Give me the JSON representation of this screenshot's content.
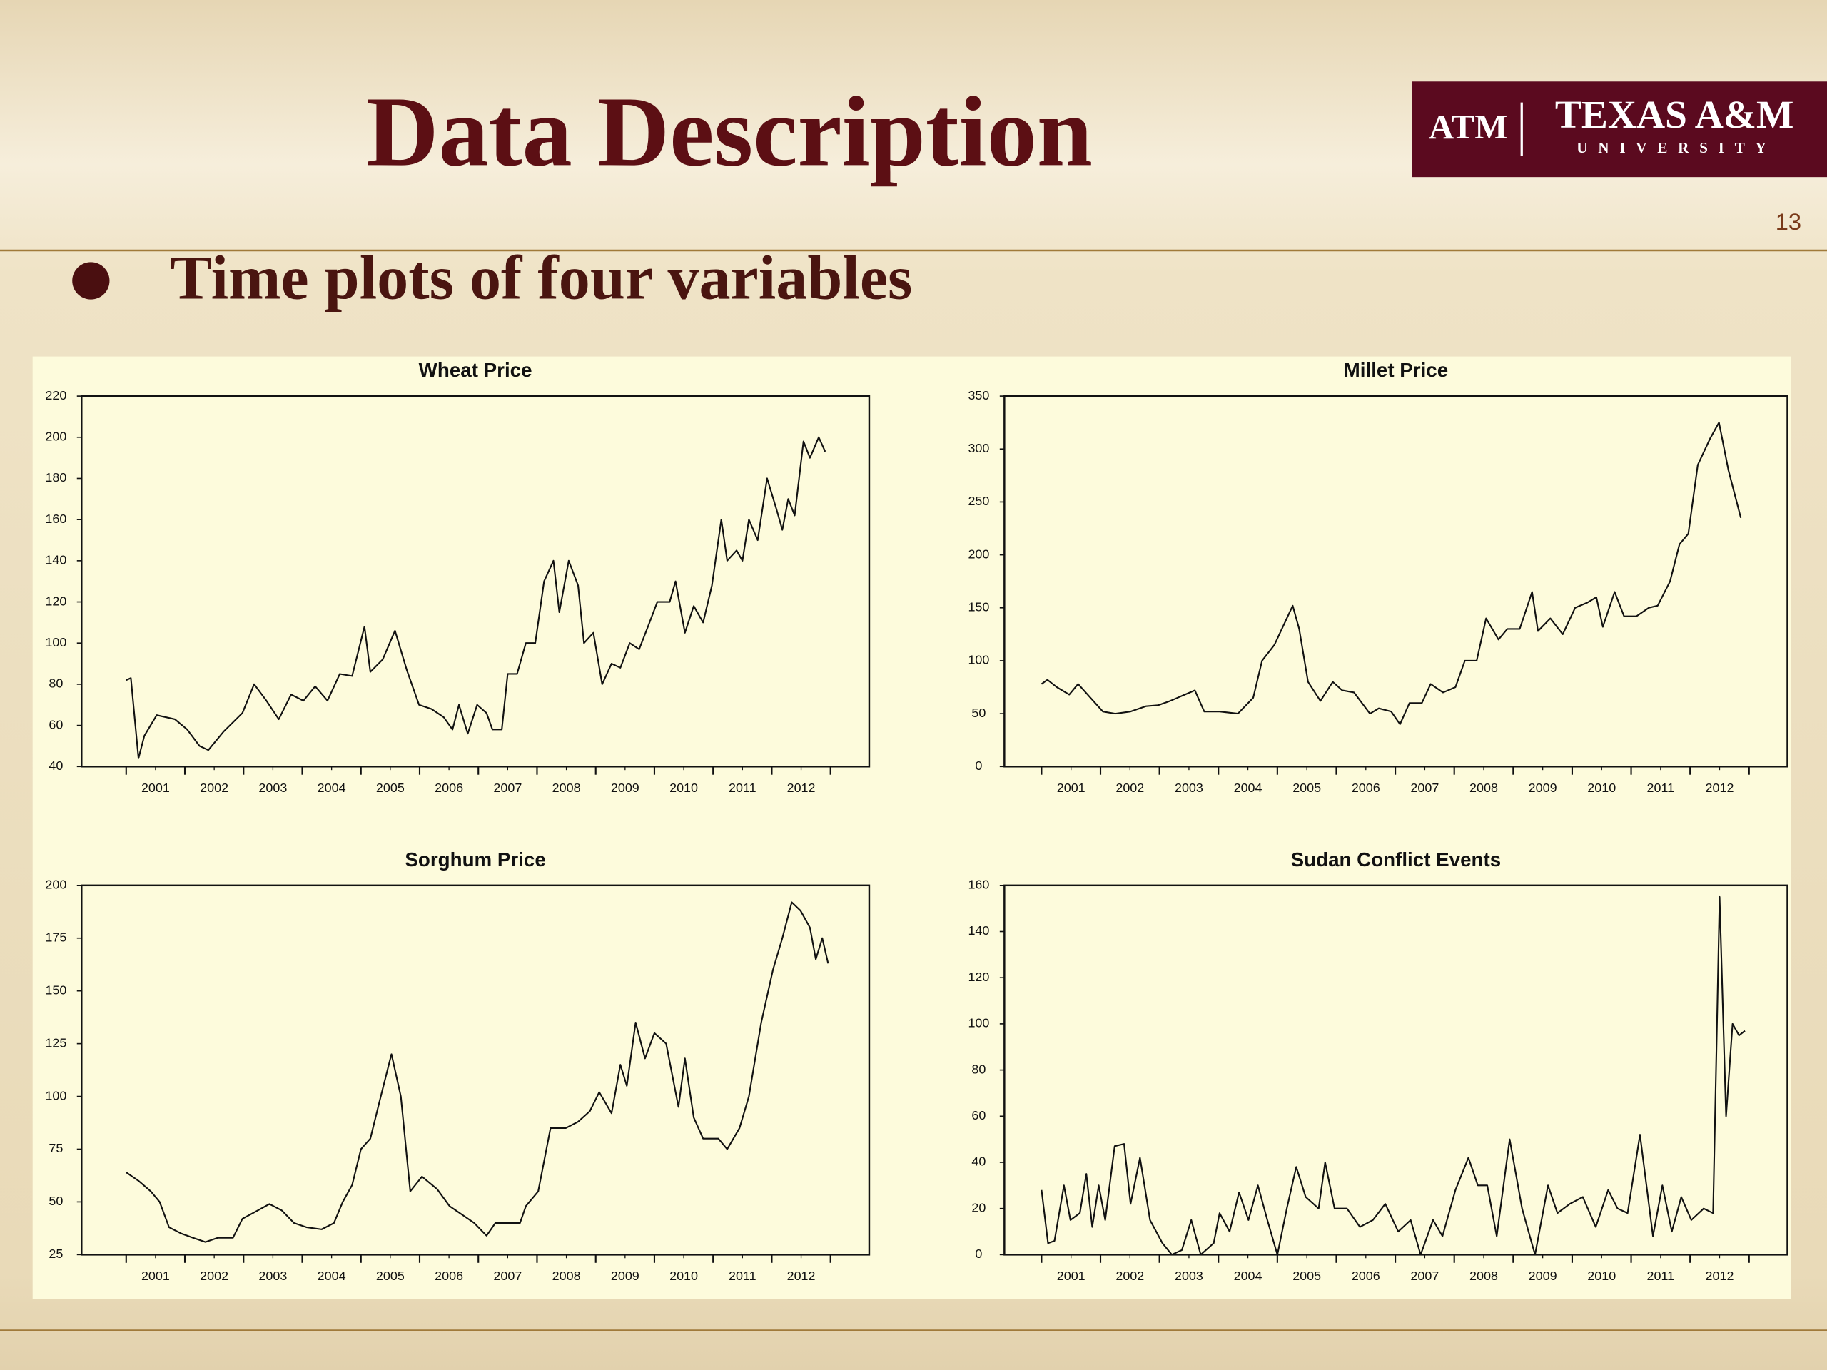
{
  "header": {
    "title": "Data Description",
    "page_number": "13",
    "logo": {
      "mark": "ATM",
      "name": "TEXAS A&M",
      "subtitle": "UNIVERSITY"
    }
  },
  "bullets": [
    "Time plots of four variables"
  ],
  "chart_data": [
    {
      "type": "line",
      "title": "Wheat Price",
      "color": "#111111",
      "x": [
        2001.0,
        2001.08,
        2001.21,
        2001.31,
        2001.52,
        2001.83,
        2002.04,
        2002.25,
        2002.4,
        2002.66,
        2002.98,
        2003.18,
        2003.39,
        2003.6,
        2003.81,
        2004.02,
        2004.22,
        2004.43,
        2004.64,
        2004.85,
        2005.06,
        2005.16,
        2005.37,
        2005.58,
        2005.78,
        2005.99,
        2006.2,
        2006.41,
        2006.56,
        2006.67,
        2006.82,
        2006.98,
        2007.14,
        2007.24,
        2007.4,
        2007.5,
        2007.66,
        2007.81,
        2007.97,
        2008.12,
        2008.28,
        2008.38,
        2008.54,
        2008.7,
        2008.8,
        2008.96,
        2009.11,
        2009.27,
        2009.42,
        2009.58,
        2009.74,
        2009.89,
        2010.05,
        2010.26,
        2010.36,
        2010.52,
        2010.67,
        2010.83,
        2010.98,
        2011.14,
        2011.24,
        2011.4,
        2011.5,
        2011.61,
        2011.76,
        2011.92,
        2012.08,
        2012.18,
        2012.28,
        2012.39,
        2012.54,
        2012.65,
        2012.8,
        2012.91
      ],
      "values": [
        82,
        83,
        44,
        55,
        65,
        63,
        58,
        50,
        48,
        57,
        66,
        80,
        72,
        63,
        75,
        72,
        79,
        72,
        85,
        84,
        108,
        86,
        92,
        106,
        87,
        70,
        68,
        64,
        58,
        70,
        56,
        70,
        66,
        58,
        58,
        85,
        85,
        100,
        100,
        130,
        140,
        115,
        140,
        128,
        100,
        105,
        80,
        90,
        88,
        100,
        97,
        108,
        120,
        120,
        130,
        105,
        118,
        110,
        128,
        160,
        140,
        145,
        140,
        160,
        150,
        180,
        165,
        155,
        170,
        162,
        198,
        190,
        200,
        193
      ],
      "xlim": [
        2000.24,
        2013.66
      ],
      "xtick_marks": [
        2001,
        2002,
        2003,
        2004,
        2005,
        2006,
        2007,
        2008,
        2009,
        2010,
        2011,
        2012,
        2013
      ],
      "xticks": [
        {
          "value": 2001.5,
          "label": "2001"
        },
        {
          "value": 2002.5,
          "label": "2002"
        },
        {
          "value": 2003.5,
          "label": "2003"
        },
        {
          "value": 2004.5,
          "label": "2004"
        },
        {
          "value": 2005.5,
          "label": "2005"
        },
        {
          "value": 2006.5,
          "label": "2006"
        },
        {
          "value": 2007.5,
          "label": "2007"
        },
        {
          "value": 2008.5,
          "label": "2008"
        },
        {
          "value": 2009.5,
          "label": "2009"
        },
        {
          "value": 2010.5,
          "label": "2010"
        },
        {
          "value": 2011.5,
          "label": "2011"
        },
        {
          "value": 2012.5,
          "label": "2012"
        }
      ],
      "ylim": [
        40,
        220
      ],
      "yticks": [
        40,
        60,
        80,
        100,
        120,
        140,
        160,
        180,
        200,
        220
      ]
    },
    {
      "type": "line",
      "title": "Millet Price",
      "color": "#111111",
      "x": [
        2001.0,
        2001.1,
        2001.26,
        2001.47,
        2001.62,
        2001.83,
        2002.04,
        2002.25,
        2002.51,
        2002.77,
        2002.98,
        2003.18,
        2003.39,
        2003.6,
        2003.76,
        2004.02,
        2004.33,
        2004.59,
        2004.74,
        2004.95,
        2005.16,
        2005.26,
        2005.37,
        2005.52,
        2005.73,
        2005.94,
        2006.1,
        2006.3,
        2006.57,
        2006.72,
        2006.93,
        2007.08,
        2007.24,
        2007.45,
        2007.6,
        2007.81,
        2008.02,
        2008.18,
        2008.38,
        2008.54,
        2008.75,
        2008.9,
        2009.11,
        2009.32,
        2009.42,
        2009.63,
        2009.84,
        2010.05,
        2010.26,
        2010.41,
        2010.52,
        2010.72,
        2010.88,
        2011.09,
        2011.3,
        2011.45,
        2011.66,
        2011.82,
        2011.97,
        2012.13,
        2012.34,
        2012.49,
        2012.65,
        2012.86
      ],
      "values": [
        78,
        82,
        75,
        68,
        78,
        65,
        52,
        50,
        52,
        57,
        58,
        62,
        67,
        72,
        52,
        52,
        50,
        65,
        100,
        115,
        140,
        152,
        130,
        80,
        62,
        80,
        72,
        70,
        50,
        55,
        52,
        40,
        60,
        60,
        78,
        70,
        75,
        100,
        100,
        140,
        120,
        130,
        130,
        165,
        128,
        140,
        125,
        150,
        155,
        160,
        132,
        165,
        142,
        142,
        150,
        152,
        175,
        210,
        220,
        285,
        310,
        325,
        280,
        235
      ],
      "xlim": [
        2000.37,
        2013.65
      ],
      "xtick_marks": [
        2001,
        2002,
        2003,
        2004,
        2005,
        2006,
        2007,
        2008,
        2009,
        2010,
        2011,
        2012,
        2013
      ],
      "xticks": [
        {
          "value": 2001.5,
          "label": "2001"
        },
        {
          "value": 2002.5,
          "label": "2002"
        },
        {
          "value": 2003.5,
          "label": "2003"
        },
        {
          "value": 2004.5,
          "label": "2004"
        },
        {
          "value": 2005.5,
          "label": "2005"
        },
        {
          "value": 2006.5,
          "label": "2006"
        },
        {
          "value": 2007.5,
          "label": "2007"
        },
        {
          "value": 2008.5,
          "label": "2008"
        },
        {
          "value": 2009.5,
          "label": "2009"
        },
        {
          "value": 2010.5,
          "label": "2010"
        },
        {
          "value": 2011.5,
          "label": "2011"
        },
        {
          "value": 2012.5,
          "label": "2012"
        }
      ],
      "ylim": [
        0,
        350
      ],
      "yticks": [
        0,
        50,
        100,
        150,
        200,
        250,
        300,
        350
      ]
    },
    {
      "type": "line",
      "title": "Sorghum Price",
      "color": "#111111",
      "x": [
        2001.0,
        2001.21,
        2001.42,
        2001.57,
        2001.73,
        2001.94,
        2002.14,
        2002.35,
        2002.56,
        2002.82,
        2002.98,
        2003.18,
        2003.44,
        2003.65,
        2003.86,
        2004.07,
        2004.33,
        2004.54,
        2004.69,
        2004.85,
        2005.0,
        2005.16,
        2005.32,
        2005.52,
        2005.68,
        2005.84,
        2006.04,
        2006.3,
        2006.51,
        2006.72,
        2006.93,
        2007.14,
        2007.29,
        2007.5,
        2007.71,
        2007.81,
        2008.02,
        2008.23,
        2008.49,
        2008.7,
        2008.9,
        2009.06,
        2009.27,
        2009.42,
        2009.53,
        2009.68,
        2009.84,
        2010.0,
        2010.2,
        2010.41,
        2010.52,
        2010.67,
        2010.83,
        2011.09,
        2011.24,
        2011.45,
        2011.61,
        2011.82,
        2012.02,
        2012.18,
        2012.34,
        2012.49,
        2012.65,
        2012.75,
        2012.86,
        2012.96
      ],
      "values": [
        64,
        60,
        55,
        50,
        38,
        35,
        33,
        31,
        33,
        33,
        42,
        45,
        49,
        46,
        40,
        38,
        37,
        40,
        50,
        58,
        75,
        80,
        98,
        120,
        100,
        55,
        62,
        56,
        48,
        44,
        40,
        34,
        40,
        40,
        40,
        48,
        55,
        85,
        85,
        88,
        93,
        102,
        92,
        115,
        105,
        135,
        118,
        130,
        125,
        95,
        118,
        90,
        80,
        80,
        75,
        85,
        100,
        135,
        160,
        175,
        192,
        188,
        180,
        165,
        175,
        163
      ],
      "xlim": [
        2000.24,
        2013.66
      ],
      "xtick_marks": [
        2001,
        2002,
        2003,
        2004,
        2005,
        2006,
        2007,
        2008,
        2009,
        2010,
        2011,
        2012,
        2013
      ],
      "xticks": [
        {
          "value": 2001.5,
          "label": "2001"
        },
        {
          "value": 2002.5,
          "label": "2002"
        },
        {
          "value": 2003.5,
          "label": "2003"
        },
        {
          "value": 2004.5,
          "label": "2004"
        },
        {
          "value": 2005.5,
          "label": "2005"
        },
        {
          "value": 2006.5,
          "label": "2006"
        },
        {
          "value": 2007.5,
          "label": "2007"
        },
        {
          "value": 2008.5,
          "label": "2008"
        },
        {
          "value": 2009.5,
          "label": "2009"
        },
        {
          "value": 2010.5,
          "label": "2010"
        },
        {
          "value": 2011.5,
          "label": "2011"
        },
        {
          "value": 2012.5,
          "label": "2012"
        }
      ],
      "ylim": [
        25,
        200
      ],
      "yticks": [
        25,
        50,
        75,
        100,
        125,
        150,
        175,
        200
      ]
    },
    {
      "type": "line",
      "title": "Sudan Conflict Events",
      "color": "#111111",
      "x": [
        2001.0,
        2001.11,
        2001.22,
        2001.38,
        2001.49,
        2001.65,
        2001.76,
        2001.86,
        2001.97,
        2002.08,
        2002.24,
        2002.4,
        2002.51,
        2002.67,
        2002.84,
        2003.05,
        2003.21,
        2003.38,
        2003.54,
        2003.7,
        2003.92,
        2004.02,
        2004.19,
        2004.35,
        2004.51,
        2004.67,
        2004.83,
        2005.0,
        2005.16,
        2005.32,
        2005.48,
        2005.7,
        2005.81,
        2005.97,
        2006.18,
        2006.4,
        2006.62,
        2006.83,
        2007.05,
        2007.26,
        2007.43,
        2007.64,
        2007.8,
        2008.02,
        2008.24,
        2008.4,
        2008.56,
        2008.72,
        2008.94,
        2009.15,
        2009.37,
        2009.59,
        2009.75,
        2009.96,
        2010.18,
        2010.4,
        2010.61,
        2010.77,
        2010.94,
        2011.15,
        2011.37,
        2011.53,
        2011.69,
        2011.85,
        2012.02,
        2012.23,
        2012.39,
        2012.5,
        2012.61,
        2012.72,
        2012.83,
        2012.93
      ],
      "values": [
        28,
        5,
        6,
        30,
        15,
        18,
        35,
        12,
        30,
        15,
        47,
        48,
        22,
        42,
        15,
        5,
        0,
        2,
        15,
        0,
        5,
        18,
        10,
        27,
        15,
        30,
        15,
        0,
        20,
        38,
        25,
        20,
        40,
        20,
        20,
        12,
        15,
        22,
        10,
        15,
        0,
        15,
        8,
        28,
        42,
        30,
        30,
        8,
        50,
        20,
        0,
        30,
        18,
        22,
        25,
        12,
        28,
        20,
        18,
        52,
        8,
        30,
        10,
        25,
        15,
        20,
        18,
        155,
        60,
        100,
        95,
        97
      ],
      "xlim": [
        2000.37,
        2013.65
      ],
      "xtick_marks": [
        2001,
        2002,
        2003,
        2004,
        2005,
        2006,
        2007,
        2008,
        2009,
        2010,
        2011,
        2012,
        2013
      ],
      "xticks": [
        {
          "value": 2001.5,
          "label": "2001"
        },
        {
          "value": 2002.5,
          "label": "2002"
        },
        {
          "value": 2003.5,
          "label": "2003"
        },
        {
          "value": 2004.5,
          "label": "2004"
        },
        {
          "value": 2005.5,
          "label": "2005"
        },
        {
          "value": 2006.5,
          "label": "2006"
        },
        {
          "value": 2007.5,
          "label": "2007"
        },
        {
          "value": 2008.5,
          "label": "2008"
        },
        {
          "value": 2009.5,
          "label": "2009"
        },
        {
          "value": 2010.5,
          "label": "2010"
        },
        {
          "value": 2011.5,
          "label": "2011"
        },
        {
          "value": 2012.5,
          "label": "2012"
        }
      ],
      "ylim": [
        0,
        160
      ],
      "yticks": [
        0,
        20,
        40,
        60,
        80,
        100,
        120,
        140,
        160
      ]
    }
  ]
}
